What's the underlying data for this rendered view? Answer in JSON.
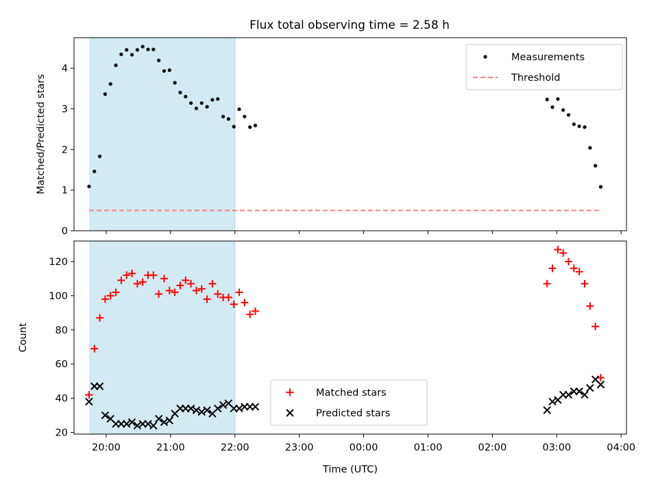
{
  "title": "Flux total observing time = 2.58 h",
  "shade_color": "#add8e6",
  "chart_data": [
    {
      "type": "scatter",
      "ylabel": "Matched/Predicted stars",
      "ylim": [
        0,
        4.75
      ],
      "yticks": [
        0,
        1,
        2,
        3,
        4
      ],
      "ytick_labels": [
        "0",
        "1",
        "2",
        "3",
        "4"
      ],
      "xlim": [
        "19:30",
        "04:05"
      ],
      "shaded_span": [
        "19:44",
        "22:00"
      ],
      "legend": {
        "placement": "upper right",
        "entries": [
          "Measurements",
          "Threshold"
        ]
      },
      "series": [
        {
          "name": "Measurements",
          "marker": "dot",
          "color": "#000000",
          "points": [
            [
              "19:44",
              1.09
            ],
            [
              "19:49",
              1.46
            ],
            [
              "19:54",
              1.83
            ],
            [
              "19:59",
              3.36
            ],
            [
              "20:04",
              3.61
            ],
            [
              "20:09",
              4.07
            ],
            [
              "20:14",
              4.34
            ],
            [
              "20:19",
              4.45
            ],
            [
              "20:24",
              4.33
            ],
            [
              "20:29",
              4.45
            ],
            [
              "20:34",
              4.53
            ],
            [
              "20:39",
              4.46
            ],
            [
              "20:44",
              4.46
            ],
            [
              "20:49",
              4.19
            ],
            [
              "20:54",
              3.93
            ],
            [
              "20:59",
              3.95
            ],
            [
              "21:04",
              3.64
            ],
            [
              "21:09",
              3.4
            ],
            [
              "21:14",
              3.3
            ],
            [
              "21:19",
              3.14
            ],
            [
              "21:24",
              3.01
            ],
            [
              "21:29",
              3.14
            ],
            [
              "21:34",
              3.05
            ],
            [
              "21:39",
              3.22
            ],
            [
              "21:44",
              3.24
            ],
            [
              "21:49",
              2.81
            ],
            [
              "21:54",
              2.75
            ],
            [
              "21:59",
              2.56
            ],
            [
              "22:04",
              2.99
            ],
            [
              "22:09",
              2.81
            ],
            [
              "22:14",
              2.55
            ],
            [
              "22:19",
              2.59
            ],
            [
              "02:51",
              3.23
            ],
            [
              "02:56",
              3.04
            ],
            [
              "03:01",
              3.24
            ],
            [
              "03:06",
              2.97
            ],
            [
              "03:11",
              2.85
            ],
            [
              "03:16",
              2.62
            ],
            [
              "03:21",
              2.57
            ],
            [
              "03:26",
              2.55
            ],
            [
              "03:31",
              2.04
            ],
            [
              "03:36",
              1.6
            ],
            [
              "03:41",
              1.08
            ]
          ]
        },
        {
          "name": "Threshold",
          "style": "dashed",
          "color": "#ff7f7f",
          "points": [
            [
              "19:44",
              0.5
            ],
            [
              "03:41",
              0.5
            ]
          ]
        }
      ]
    },
    {
      "type": "scatter",
      "ylabel": "Count",
      "xlabel": "Time (UTC)",
      "ylim": [
        19,
        132
      ],
      "yticks": [
        20,
        40,
        60,
        80,
        100,
        120
      ],
      "ytick_labels": [
        "20",
        "40",
        "60",
        "80",
        "100",
        "120"
      ],
      "xlim": [
        "19:30",
        "04:05"
      ],
      "xticks": [
        "20:00",
        "21:00",
        "22:00",
        "23:00",
        "00:00",
        "01:00",
        "02:00",
        "03:00",
        "04:00"
      ],
      "xtick_labels": [
        "20:00",
        "21:00",
        "22:00",
        "23:00",
        "00:00",
        "01:00",
        "02:00",
        "03:00",
        "04:00"
      ],
      "shaded_span": [
        "19:44",
        "22:00"
      ],
      "legend": {
        "placement": "lower center",
        "entries": [
          "Matched stars",
          "Predicted stars"
        ]
      },
      "series": [
        {
          "name": "Matched stars",
          "marker": "plus",
          "color": "#ff0000",
          "points": [
            [
              "19:44",
              42
            ],
            [
              "19:49",
              69
            ],
            [
              "19:54",
              87
            ],
            [
              "19:59",
              98
            ],
            [
              "20:04",
              100
            ],
            [
              "20:09",
              102
            ],
            [
              "20:14",
              109
            ],
            [
              "20:19",
              112
            ],
            [
              "20:24",
              113
            ],
            [
              "20:29",
              107
            ],
            [
              "20:34",
              108
            ],
            [
              "20:39",
              112
            ],
            [
              "20:44",
              112
            ],
            [
              "20:49",
              101
            ],
            [
              "20:54",
              110
            ],
            [
              "20:59",
              103
            ],
            [
              "21:04",
              102
            ],
            [
              "21:09",
              106
            ],
            [
              "21:14",
              109
            ],
            [
              "21:19",
              107
            ],
            [
              "21:24",
              103
            ],
            [
              "21:29",
              104
            ],
            [
              "21:34",
              98
            ],
            [
              "21:39",
              107
            ],
            [
              "21:44",
              101
            ],
            [
              "21:49",
              99
            ],
            [
              "21:54",
              99
            ],
            [
              "21:59",
              95
            ],
            [
              "22:04",
              102
            ],
            [
              "22:09",
              96
            ],
            [
              "22:14",
              89
            ],
            [
              "22:19",
              91
            ],
            [
              "02:51",
              107
            ],
            [
              "02:56",
              116
            ],
            [
              "03:01",
              127
            ],
            [
              "03:06",
              125
            ],
            [
              "03:11",
              120
            ],
            [
              "03:16",
              116
            ],
            [
              "03:21",
              114
            ],
            [
              "03:26",
              107
            ],
            [
              "03:31",
              94
            ],
            [
              "03:36",
              82
            ],
            [
              "03:41",
              52
            ]
          ]
        },
        {
          "name": "Predicted stars",
          "marker": "x",
          "color": "#000000",
          "points": [
            [
              "19:44",
              38
            ],
            [
              "19:49",
              47
            ],
            [
              "19:54",
              47
            ],
            [
              "19:59",
              30
            ],
            [
              "20:04",
              28
            ],
            [
              "20:09",
              25
            ],
            [
              "20:14",
              25
            ],
            [
              "20:19",
              25
            ],
            [
              "20:24",
              26
            ],
            [
              "20:29",
              24
            ],
            [
              "20:34",
              25
            ],
            [
              "20:39",
              25
            ],
            [
              "20:44",
              24
            ],
            [
              "20:49",
              28
            ],
            [
              "20:54",
              26
            ],
            [
              "20:59",
              27
            ],
            [
              "21:04",
              31
            ],
            [
              "21:09",
              34
            ],
            [
              "21:14",
              34
            ],
            [
              "21:19",
              34
            ],
            [
              "21:24",
              33
            ],
            [
              "21:29",
              32
            ],
            [
              "21:34",
              33
            ],
            [
              "21:39",
              31
            ],
            [
              "21:44",
              34
            ],
            [
              "21:49",
              36
            ],
            [
              "21:54",
              37
            ],
            [
              "21:59",
              34
            ],
            [
              "22:04",
              34
            ],
            [
              "22:09",
              35
            ],
            [
              "22:14",
              35
            ],
            [
              "22:19",
              35
            ],
            [
              "02:51",
              33
            ],
            [
              "02:56",
              38
            ],
            [
              "03:01",
              39
            ],
            [
              "03:06",
              42
            ],
            [
              "03:11",
              42
            ],
            [
              "03:16",
              44
            ],
            [
              "03:21",
              44
            ],
            [
              "03:26",
              42
            ],
            [
              "03:31",
              46
            ],
            [
              "03:36",
              51
            ],
            [
              "03:41",
              48
            ]
          ]
        }
      ]
    }
  ]
}
